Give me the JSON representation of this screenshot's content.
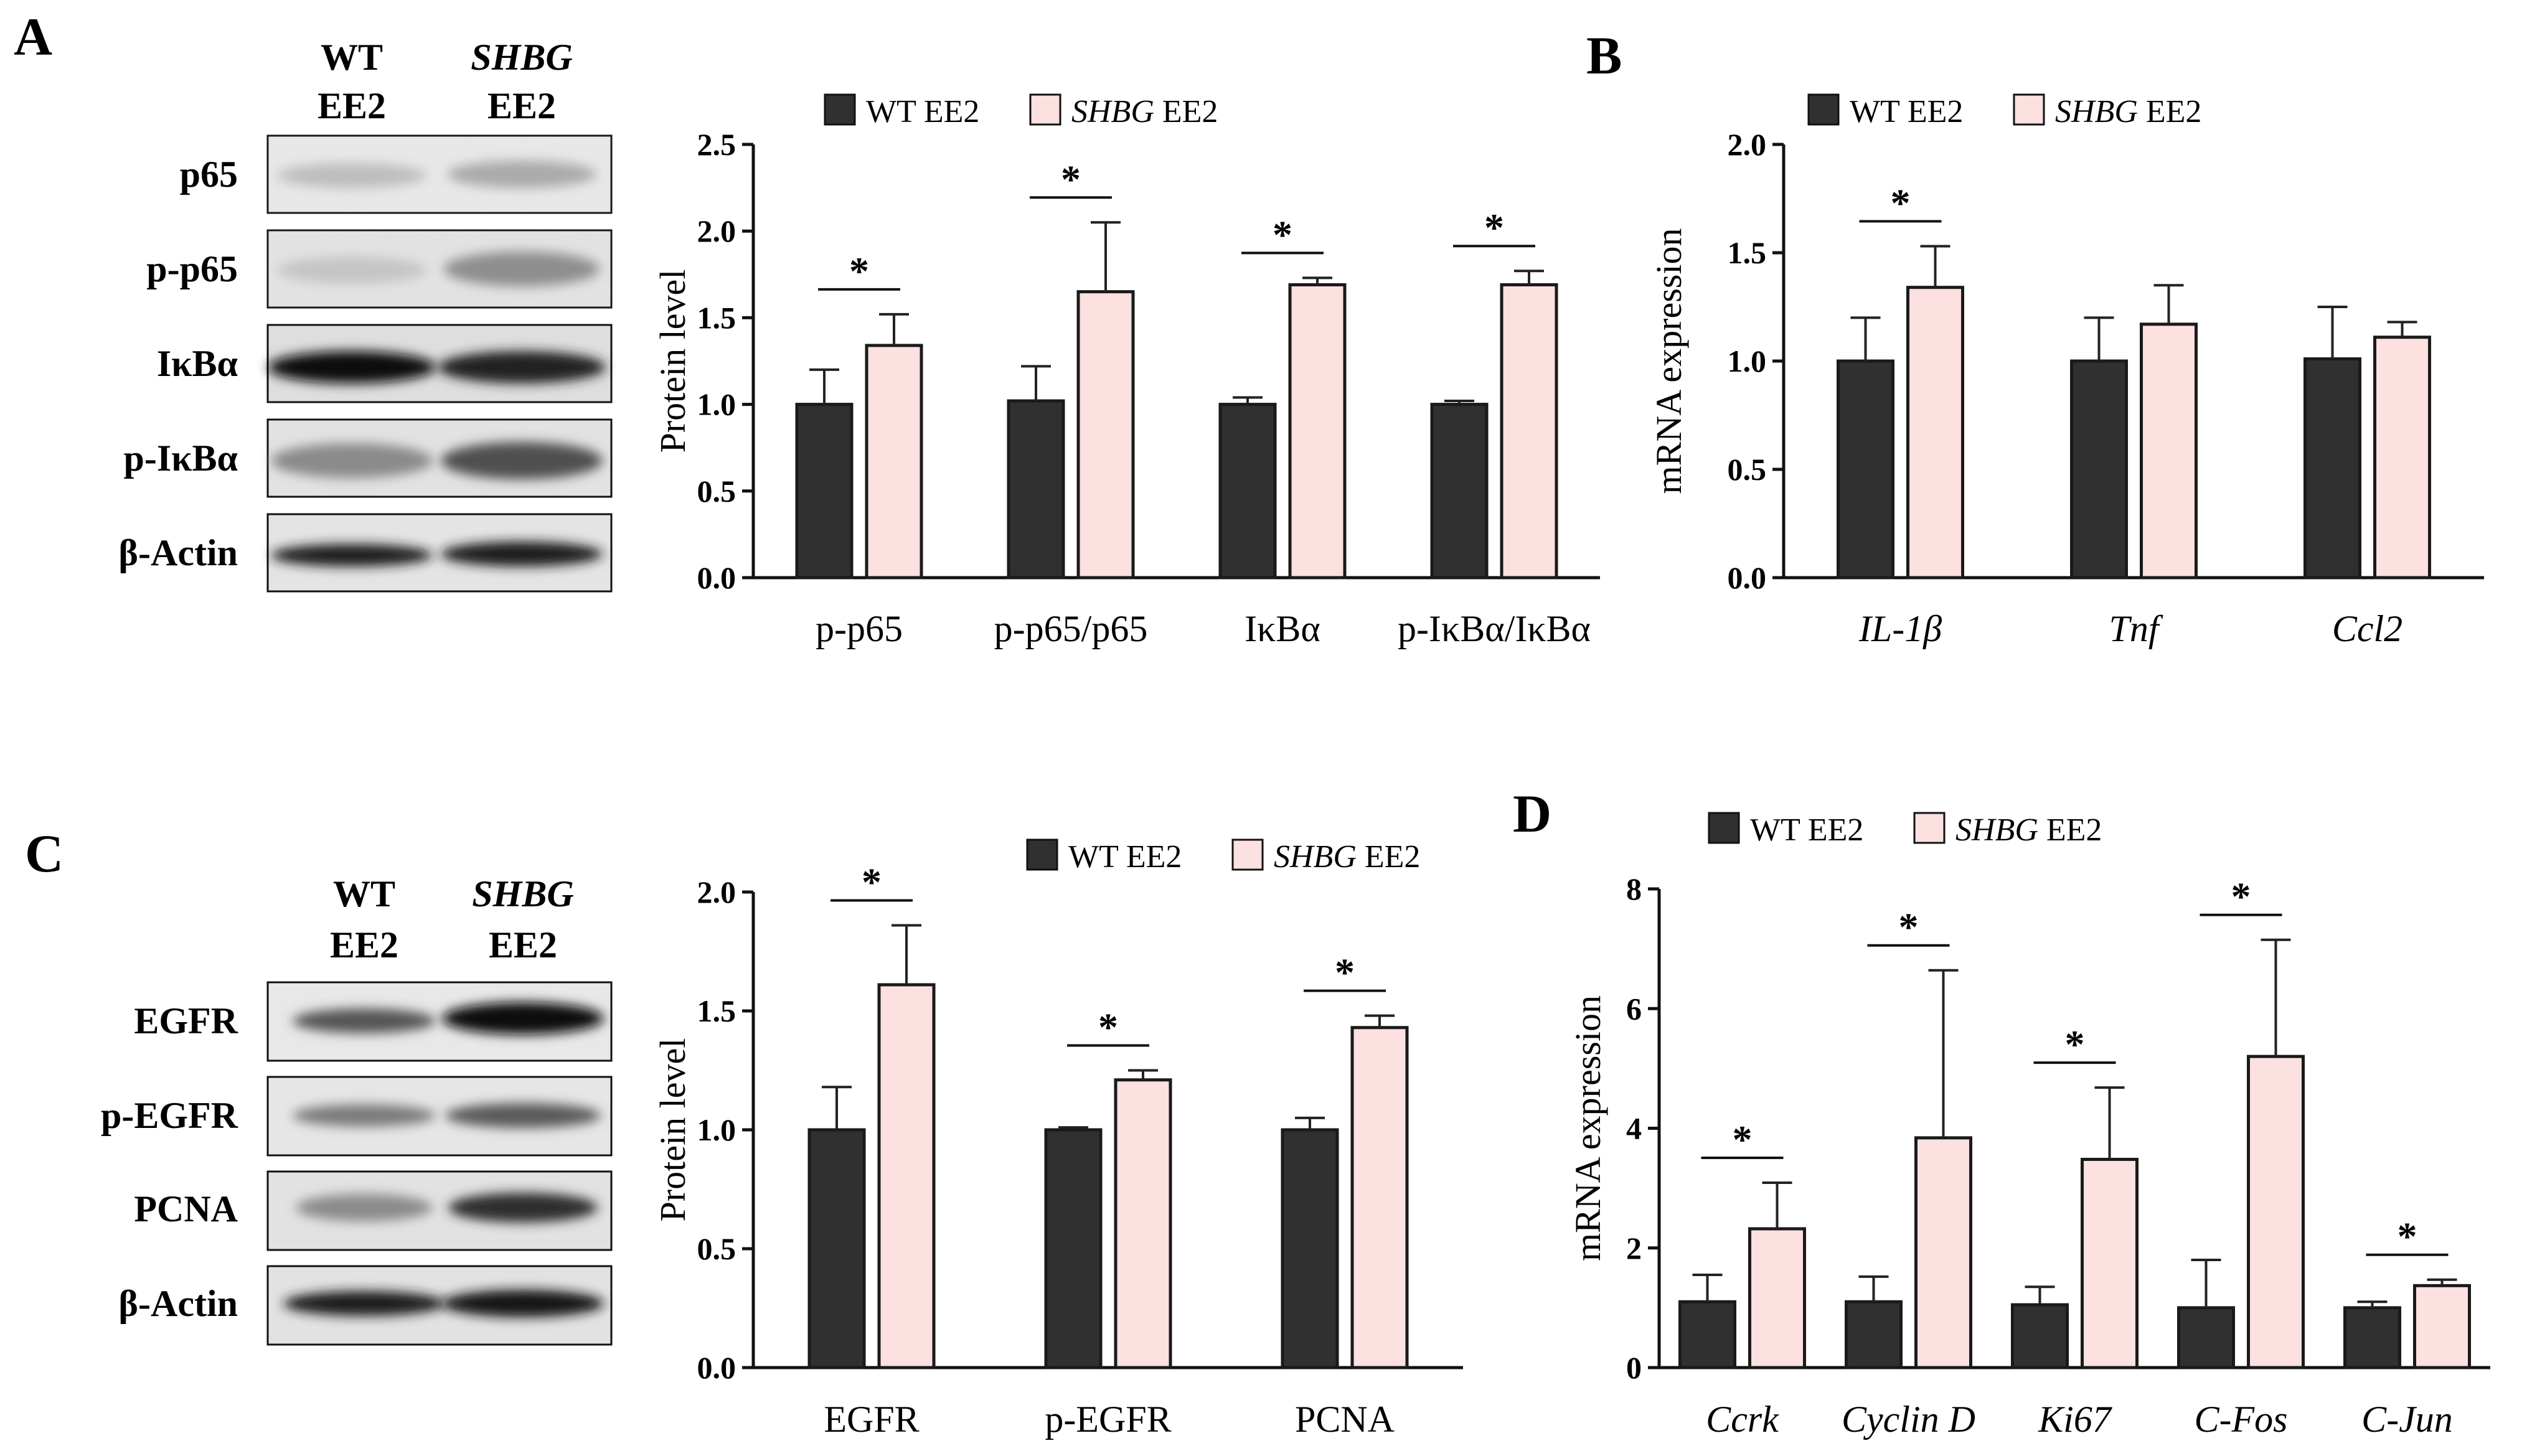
{
  "colors": {
    "wt": "#303030",
    "shbg": "#fde0e0",
    "stroke": "#1a1a1a"
  },
  "legend": {
    "wt_label": "WT EE2",
    "shbg_gene": "SHBG",
    "shbg_suffix": " EE2"
  },
  "blots_A": {
    "letter": "A",
    "col1": [
      "WT",
      "EE2"
    ],
    "col2_gene": "SHBG",
    "col2_suffix": "EE2",
    "rows": [
      "p65",
      "p-p65",
      "IκBα",
      "p-IκBα",
      "β-Actin"
    ]
  },
  "blots_C": {
    "letter": "C",
    "col1": [
      "WT",
      "EE2"
    ],
    "col2_gene": "SHBG",
    "col2_suffix": "EE2",
    "rows": [
      "EGFR",
      "p-EGFR",
      "PCNA",
      "β-Actin"
    ]
  },
  "chart_data": [
    {
      "panel": "A",
      "type": "bar",
      "title": "",
      "ylabel": "Protein level",
      "xlabel": "",
      "ylim": [
        0,
        2.5
      ],
      "yticks": [
        "0.0",
        "0.5",
        "1.0",
        "1.5",
        "2.0",
        "2.5"
      ],
      "categories": [
        "p-p65",
        "p-p65/p65",
        "IκBα",
        "p-IκBα/IκBα"
      ],
      "italic_categories": false,
      "series": [
        {
          "name": "WT EE2",
          "values": [
            1.0,
            1.02,
            1.0,
            1.0
          ],
          "errors": [
            0.2,
            0.2,
            0.04,
            0.02
          ]
        },
        {
          "name": "SHBG EE2",
          "values": [
            1.34,
            1.65,
            1.69,
            1.69
          ],
          "errors": [
            0.18,
            0.4,
            0.04,
            0.08
          ]
        }
      ],
      "significance": [
        "*",
        "*",
        "*",
        "*"
      ]
    },
    {
      "panel": "B",
      "type": "bar",
      "title": "",
      "ylabel": "mRNA expression",
      "xlabel": "",
      "ylim": [
        0,
        2.0
      ],
      "yticks": [
        "0.0",
        "0.5",
        "1.0",
        "1.5",
        "2.0"
      ],
      "categories": [
        "IL-1β",
        "Tnf",
        "Ccl2"
      ],
      "italic_categories": true,
      "series": [
        {
          "name": "WT EE2",
          "values": [
            1.0,
            1.0,
            1.01
          ],
          "errors": [
            0.2,
            0.2,
            0.24
          ]
        },
        {
          "name": "SHBG EE2",
          "values": [
            1.34,
            1.17,
            1.11
          ],
          "errors": [
            0.19,
            0.18,
            0.07
          ]
        }
      ],
      "significance": [
        "*",
        "",
        ""
      ]
    },
    {
      "panel": "C",
      "type": "bar",
      "title": "",
      "ylabel": "Protein level",
      "xlabel": "",
      "ylim": [
        0,
        2.0
      ],
      "yticks": [
        "0.0",
        "0.5",
        "1.0",
        "1.5",
        "2.0"
      ],
      "categories": [
        "EGFR",
        "p-EGFR",
        "PCNA"
      ],
      "italic_categories": false,
      "series": [
        {
          "name": "WT EE2",
          "values": [
            1.0,
            1.0,
            1.0
          ],
          "errors": [
            0.18,
            0.01,
            0.05
          ]
        },
        {
          "name": "SHBG EE2",
          "values": [
            1.61,
            1.21,
            1.43
          ],
          "errors": [
            0.25,
            0.04,
            0.05
          ]
        }
      ],
      "significance": [
        "*",
        "*",
        "*"
      ]
    },
    {
      "panel": "D",
      "type": "bar",
      "title": "",
      "ylabel": "mRNA expression",
      "xlabel": "",
      "ylim": [
        0,
        8
      ],
      "yticks": [
        "0",
        "2",
        "4",
        "6",
        "8"
      ],
      "categories": [
        "Ccrk",
        "Cyclin D",
        "Ki67",
        "C-Fos",
        "C-Jun"
      ],
      "italic_categories": true,
      "series": [
        {
          "name": "WT EE2",
          "values": [
            1.1,
            1.1,
            1.05,
            1.0,
            1.0
          ],
          "errors": [
            0.45,
            0.42,
            0.3,
            0.8,
            0.1
          ]
        },
        {
          "name": "SHBG EE2",
          "values": [
            2.32,
            3.84,
            3.48,
            5.2,
            1.37
          ],
          "errors": [
            0.77,
            2.8,
            1.2,
            1.95,
            0.1
          ]
        }
      ],
      "significance": [
        "*",
        "*",
        "*",
        "*",
        "*"
      ]
    }
  ]
}
